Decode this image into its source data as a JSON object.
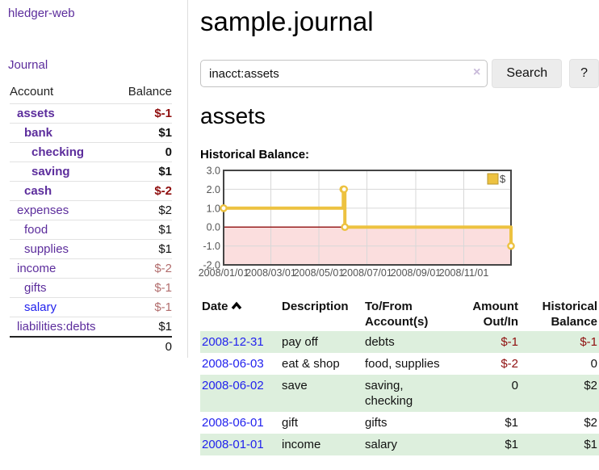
{
  "app": {
    "title": "hledger-web"
  },
  "colors": {
    "accent_gold": "#edc240",
    "negative_strong": "#8f0e0e",
    "negative_soft": "#b26d6d",
    "link_purple": "#5c2d9c",
    "link_blue": "#2222ee",
    "row_stripe_green": "#ddefdd"
  },
  "sidebar": {
    "journal_link": "Journal",
    "table": {
      "account_header": "Account",
      "balance_header": "Balance",
      "rows": [
        {
          "account": "assets",
          "depth": 1,
          "bold": true,
          "link_color": "purple",
          "balance": "$-1",
          "balance_class": "neg-strong"
        },
        {
          "account": "bank",
          "depth": 2,
          "bold": true,
          "link_color": "purple",
          "balance": "$1",
          "balance_class": "pos"
        },
        {
          "account": "checking",
          "depth": 3,
          "bold": true,
          "link_color": "purple",
          "balance": "0",
          "balance_class": "pos"
        },
        {
          "account": "saving",
          "depth": 3,
          "bold": true,
          "link_color": "purple",
          "balance": "$1",
          "balance_class": "pos"
        },
        {
          "account": "cash",
          "depth": 2,
          "bold": true,
          "link_color": "purple",
          "balance": "$-2",
          "balance_class": "neg-strong"
        },
        {
          "account": "expenses",
          "depth": 1,
          "bold": false,
          "link_color": "purple",
          "balance": "$2",
          "balance_class": "pos"
        },
        {
          "account": "food",
          "depth": 2,
          "bold": false,
          "link_color": "purple",
          "balance": "$1",
          "balance_class": "pos"
        },
        {
          "account": "supplies",
          "depth": 2,
          "bold": false,
          "link_color": "purple",
          "balance": "$1",
          "balance_class": "pos"
        },
        {
          "account": "income",
          "depth": 1,
          "bold": false,
          "link_color": "purple",
          "balance": "$-2",
          "balance_class": "neg-soft"
        },
        {
          "account": "gifts",
          "depth": 2,
          "bold": false,
          "link_color": "purple",
          "balance": "$-1",
          "balance_class": "neg-soft"
        },
        {
          "account": "salary",
          "depth": 2,
          "bold": false,
          "link_color": "blue",
          "balance": "$-1",
          "balance_class": "neg-soft"
        },
        {
          "account": "liabilities:debts",
          "depth": 1,
          "bold": false,
          "link_color": "purple",
          "balance": "$1",
          "balance_class": "pos"
        }
      ],
      "total": "0"
    }
  },
  "main": {
    "title": "sample.journal",
    "search": {
      "value": "inacct:assets",
      "clear_icon": "×",
      "button": "Search",
      "help_button": "?"
    },
    "account_heading": "assets"
  },
  "chart_data": {
    "type": "line",
    "title": "Historical Balance:",
    "step": true,
    "legend": "$",
    "legend_position": "top-right",
    "grid": true,
    "ylim": [
      -2,
      3
    ],
    "xlim_days": [
      0,
      365
    ],
    "yticks": [
      {
        "v": 3,
        "label": "3.0"
      },
      {
        "v": 2,
        "label": "2.0"
      },
      {
        "v": 1,
        "label": "1.0"
      },
      {
        "v": 0,
        "label": "0.0"
      },
      {
        "v": -1,
        "label": "-1.0"
      },
      {
        "v": -2,
        "label": "-2.0"
      }
    ],
    "xticks": [
      {
        "day": 0,
        "label": "2008/01/01"
      },
      {
        "day": 60,
        "label": "2008/03/01"
      },
      {
        "day": 121,
        "label": "2008/05/01"
      },
      {
        "day": 182,
        "label": "2008/07/01"
      },
      {
        "day": 244,
        "label": "2008/09/01"
      },
      {
        "day": 305,
        "label": "2008/11/01"
      }
    ],
    "series": [
      {
        "name": "$",
        "color": "#edc240",
        "points": [
          {
            "date": "2008-01-01",
            "day": 0,
            "value": 1
          },
          {
            "date": "2008-06-01",
            "day": 152,
            "value": 2
          },
          {
            "date": "2008-06-02",
            "day": 153,
            "value": 2
          },
          {
            "date": "2008-06-03",
            "day": 154,
            "value": 0
          },
          {
            "date": "2008-12-31",
            "day": 365,
            "value": -1
          }
        ]
      }
    ],
    "negative_region_fill": "#fbdede",
    "zero_line_color": "#8f0e0e"
  },
  "register": {
    "headers": {
      "date": "Date",
      "description": "Description",
      "accounts": "To/From Account(s)",
      "amount": "Amount Out/In",
      "balance": "Historical Balance"
    },
    "rows": [
      {
        "date": "2008-12-31",
        "description": "pay off",
        "accounts": "debts",
        "amount": "$-1",
        "amount_negative": true,
        "balance": "$-1",
        "balance_negative": true,
        "shaded": true
      },
      {
        "date": "2008-06-03",
        "description": "eat & shop",
        "accounts": "food, supplies",
        "amount": "$-2",
        "amount_negative": true,
        "balance": "0",
        "balance_negative": false,
        "shaded": false
      },
      {
        "date": "2008-06-02",
        "description": "save",
        "accounts": "saving, checking",
        "amount": "0",
        "amount_negative": false,
        "balance": "$2",
        "balance_negative": false,
        "shaded": true
      },
      {
        "date": "2008-06-01",
        "description": "gift",
        "accounts": "gifts",
        "amount": "$1",
        "amount_negative": false,
        "balance": "$2",
        "balance_negative": false,
        "shaded": false
      },
      {
        "date": "2008-01-01",
        "description": "income",
        "accounts": "salary",
        "amount": "$1",
        "amount_negative": false,
        "balance": "$1",
        "balance_negative": false,
        "shaded": true
      }
    ]
  }
}
